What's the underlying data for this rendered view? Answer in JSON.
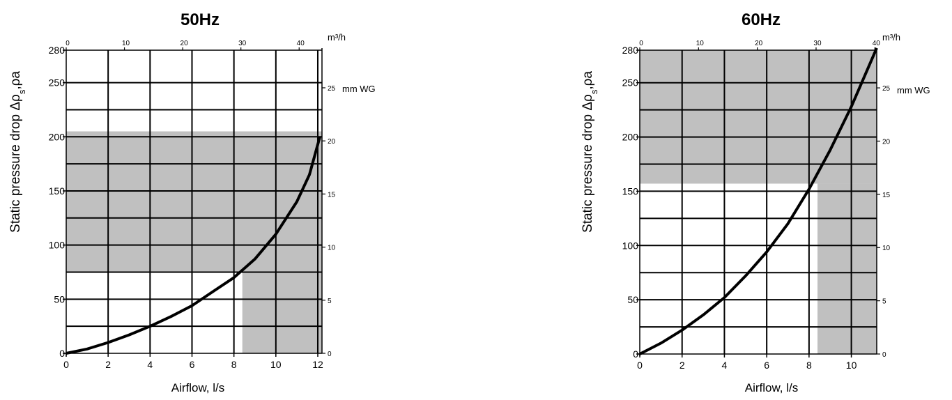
{
  "chart_data": [
    {
      "type": "line",
      "title": "50Hz",
      "xlabel": "Airflow, l/s",
      "ylabel": "Static pressure drop Δρ",
      "ylabel_sub": "s",
      "ylabel_unit": "ρa",
      "top_axis_unit": "m³/h",
      "right_axis_unit": "mm WG",
      "xlim": [
        0,
        12.2
      ],
      "ylim": [
        0,
        280
      ],
      "x_ticks": [
        0,
        2,
        4,
        6,
        8,
        10,
        12
      ],
      "x_tick_labels": [
        "0",
        "2",
        "4",
        "6",
        "8",
        "10",
        "12"
      ],
      "y_ticks": [
        0,
        50,
        100,
        150,
        200,
        250,
        280
      ],
      "y_tick_labels": [
        "0",
        "50",
        "100",
        "150",
        "200",
        "250",
        "280"
      ],
      "top_ticks": [
        0,
        10,
        20,
        30,
        40
      ],
      "top_tick_labels": [
        "0",
        "10",
        "20",
        "30",
        "40"
      ],
      "right_ticks": [
        0,
        5,
        10,
        15,
        20,
        25
      ],
      "right_tick_labels": [
        "0",
        "5",
        "10",
        "15",
        "20",
        "25"
      ],
      "h_grid": [
        25,
        50,
        75,
        100,
        125,
        150,
        175,
        200,
        225,
        250
      ],
      "v_grid": [
        2,
        4,
        6,
        8,
        10,
        12
      ],
      "shaded_regions": [
        {
          "x": [
            0,
            12.2
          ],
          "y": [
            75,
            205
          ]
        },
        {
          "x": [
            8.4,
            12.2
          ],
          "y": [
            0,
            75
          ]
        }
      ],
      "series": [
        {
          "x": [
            0,
            1,
            2,
            3,
            4,
            5,
            6,
            7,
            8,
            9,
            10,
            11,
            11.6,
            12.1
          ],
          "y": [
            0,
            4,
            10,
            17,
            25,
            34,
            44,
            57,
            70,
            87,
            110,
            140,
            165,
            200
          ]
        }
      ]
    },
    {
      "type": "line",
      "title": "60Hz",
      "xlabel": "Airflow, l/s",
      "ylabel": "Static pressure drop Δρ",
      "ylabel_sub": "s",
      "ylabel_unit": "ρa",
      "top_axis_unit": "m³/h",
      "right_axis_unit": "mm WG",
      "xlim": [
        0,
        11.2
      ],
      "ylim": [
        0,
        280
      ],
      "x_ticks": [
        0,
        2,
        4,
        6,
        8,
        10
      ],
      "x_tick_labels": [
        "0",
        "2",
        "4",
        "6",
        "8",
        "10"
      ],
      "y_ticks": [
        0,
        50,
        100,
        150,
        200,
        250,
        280
      ],
      "y_tick_labels": [
        "0",
        "50",
        "100",
        "150",
        "200",
        "250",
        "280"
      ],
      "top_ticks": [
        0,
        10,
        20,
        30,
        40
      ],
      "top_tick_labels": [
        "0",
        "10",
        "20",
        "30",
        "40"
      ],
      "right_ticks": [
        0,
        5,
        10,
        15,
        20,
        25
      ],
      "right_tick_labels": [
        "0",
        "5",
        "10",
        "15",
        "20",
        "25"
      ],
      "h_grid": [
        25,
        50,
        75,
        100,
        125,
        150,
        175,
        200,
        225,
        250
      ],
      "v_grid": [
        2,
        4,
        6,
        8,
        10
      ],
      "shaded_regions": [
        {
          "x": [
            0,
            11.2
          ],
          "y": [
            157,
            280
          ]
        },
        {
          "x": [
            8.4,
            11.2
          ],
          "y": [
            0,
            157
          ]
        }
      ],
      "series": [
        {
          "x": [
            0,
            1,
            2,
            3,
            4,
            5,
            6,
            7,
            8,
            9,
            10,
            11.2
          ],
          "y": [
            0,
            10,
            22,
            36,
            52,
            72,
            94,
            120,
            152,
            188,
            228,
            282
          ]
        }
      ]
    }
  ]
}
